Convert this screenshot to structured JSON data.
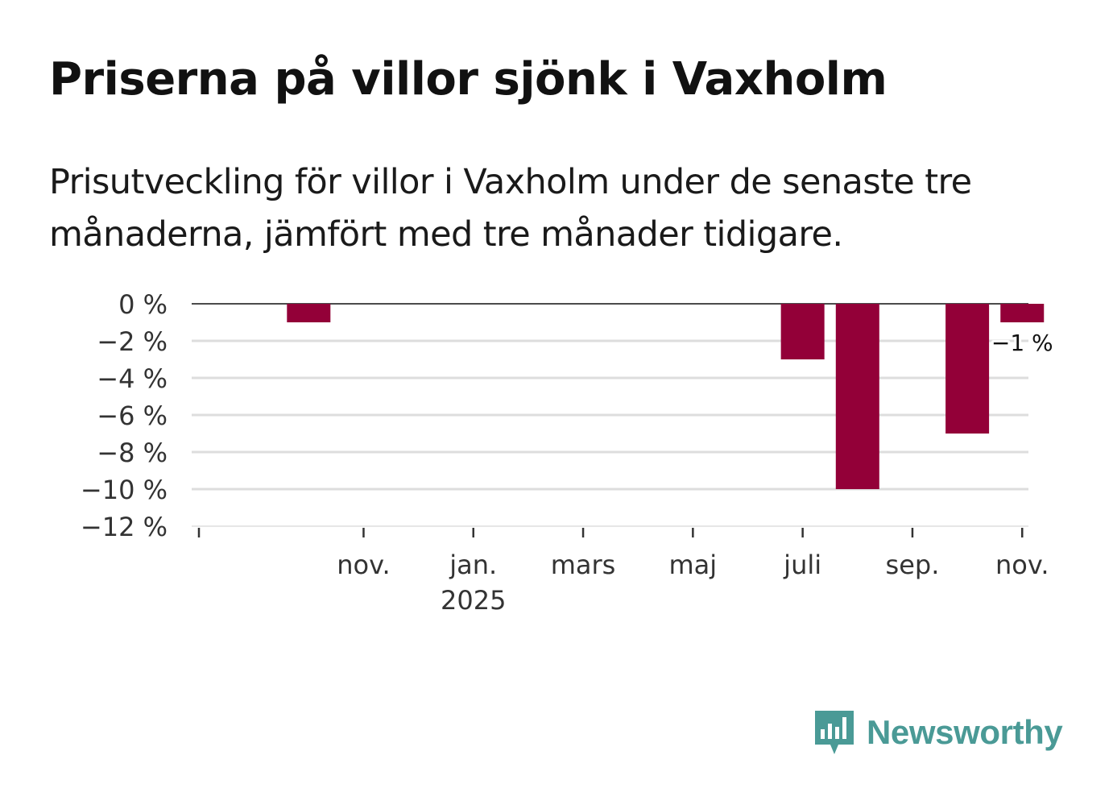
{
  "title": "Priserna på villor sjönk i Vaxholm",
  "subtitle": "Prisutveckling för villor i Vaxholm under de senaste tre månaderna, jämfört med tre månader tidigare.",
  "brand": {
    "name": "Newsworthy",
    "color": "#4a9a96",
    "icon": "bar-chart-speech-bubble-icon"
  },
  "colors": {
    "bar": "#930038",
    "grid": "#dddddd",
    "zero_line": "#333333",
    "text": "#333333"
  },
  "chart_data": {
    "type": "bar",
    "title": "Priserna på villor sjönk i Vaxholm",
    "xlabel": "",
    "ylabel": "",
    "ylim": [
      -12,
      0
    ],
    "y_ticks": [
      0,
      -2,
      -4,
      -6,
      -8,
      -10,
      -12
    ],
    "y_tick_labels": [
      "0 %",
      "−2 %",
      "−4 %",
      "−6 %",
      "−8 %",
      "−10 %",
      "−12 %"
    ],
    "x_months": [
      "2024-09",
      "2024-10",
      "2024-11",
      "2024-12",
      "2025-01",
      "2025-02",
      "2025-03",
      "2025-04",
      "2025-05",
      "2025-06",
      "2025-07",
      "2025-08",
      "2025-09",
      "2025-10",
      "2025-11"
    ],
    "x_tick_labels": [
      {
        "month": "2024-11",
        "label": "nov.",
        "sublabel": ""
      },
      {
        "month": "2025-01",
        "label": "jan.",
        "sublabel": "2025"
      },
      {
        "month": "2025-03",
        "label": "mars",
        "sublabel": ""
      },
      {
        "month": "2025-05",
        "label": "maj",
        "sublabel": ""
      },
      {
        "month": "2025-07",
        "label": "juli",
        "sublabel": ""
      },
      {
        "month": "2025-09",
        "label": "sep.",
        "sublabel": ""
      },
      {
        "month": "2025-11",
        "label": "nov.",
        "sublabel": ""
      }
    ],
    "series": [
      {
        "name": "Prisutveckling",
        "values": [
          {
            "month": "2024-10",
            "value": -1
          },
          {
            "month": "2025-07",
            "value": -3
          },
          {
            "month": "2025-08",
            "value": -10
          },
          {
            "month": "2025-10",
            "value": -7
          },
          {
            "month": "2025-11",
            "value": -1
          }
        ]
      }
    ],
    "annotations": [
      {
        "month": "2025-11",
        "label": "−1 %"
      }
    ]
  }
}
